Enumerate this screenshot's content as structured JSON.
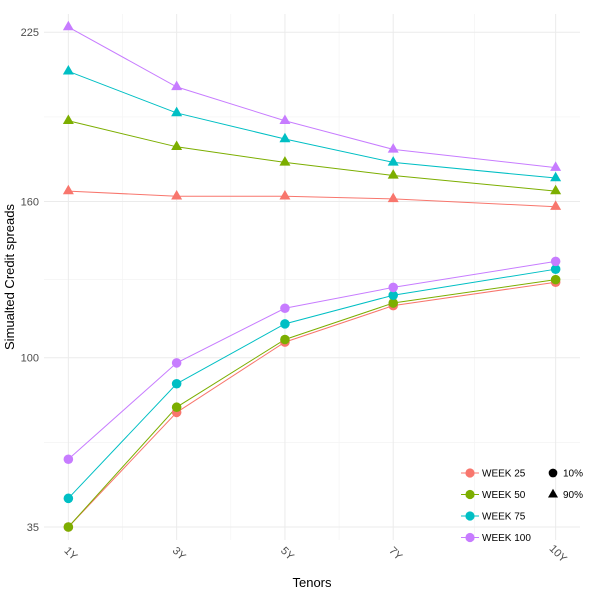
{
  "chart_data": {
    "type": "line",
    "xlabel": "Tenors",
    "ylabel": "Simualted Credit spreads",
    "categories": [
      "1Y",
      "3Y",
      "5Y",
      "7Y",
      "10Y"
    ],
    "x_positions": [
      1,
      3,
      5,
      7,
      10
    ],
    "xlim": [
      0.55,
      10.45
    ],
    "ylim": [
      30,
      232
    ],
    "y_ticks": [
      35,
      100,
      160,
      225
    ],
    "grid": true,
    "legend_position": "bottom-right",
    "series_legend": [
      {
        "name": "WEEK 25",
        "color": "#F8766D"
      },
      {
        "name": "WEEK 50",
        "color": "#7CAE00"
      },
      {
        "name": "WEEK 75",
        "color": "#00BFC4"
      },
      {
        "name": "WEEK 100",
        "color": "#C77CFF"
      }
    ],
    "shape_legend": [
      {
        "name": "10%",
        "shape": "circle"
      },
      {
        "name": "90%",
        "shape": "triangle"
      }
    ],
    "series": [
      {
        "week": "WEEK 25",
        "quantile": "10%",
        "color": "#F8766D",
        "shape": "circle",
        "values": [
          35,
          79,
          106,
          120,
          129
        ]
      },
      {
        "week": "WEEK 50",
        "quantile": "10%",
        "color": "#7CAE00",
        "shape": "circle",
        "values": [
          35,
          81,
          107,
          121,
          130
        ]
      },
      {
        "week": "WEEK 75",
        "quantile": "10%",
        "color": "#00BFC4",
        "shape": "circle",
        "values": [
          46,
          90,
          113,
          124,
          134
        ]
      },
      {
        "week": "WEEK 100",
        "quantile": "10%",
        "color": "#C77CFF",
        "shape": "circle",
        "values": [
          61,
          98,
          119,
          127,
          137
        ]
      },
      {
        "week": "WEEK 25",
        "quantile": "90%",
        "color": "#F8766D",
        "shape": "triangle",
        "values": [
          164,
          162,
          162,
          161,
          158
        ]
      },
      {
        "week": "WEEK 50",
        "quantile": "90%",
        "color": "#7CAE00",
        "shape": "triangle",
        "values": [
          191,
          181,
          175,
          170,
          164
        ]
      },
      {
        "week": "WEEK 75",
        "quantile": "90%",
        "color": "#00BFC4",
        "shape": "triangle",
        "values": [
          210,
          194,
          184,
          175,
          169
        ]
      },
      {
        "week": "WEEK 100",
        "quantile": "90%",
        "color": "#C77CFF",
        "shape": "triangle",
        "values": [
          227,
          204,
          191,
          180,
          173
        ]
      }
    ]
  }
}
